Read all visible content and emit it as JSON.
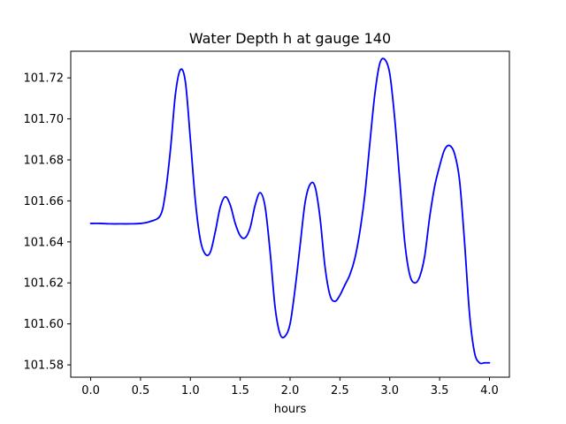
{
  "chart_data": {
    "type": "line",
    "title": "Water Depth h at gauge 140",
    "xlabel": "hours",
    "ylabel": "",
    "xlim": [
      -0.2,
      4.2
    ],
    "ylim": [
      101.574,
      101.733
    ],
    "xticks": [
      0.0,
      0.5,
      1.0,
      1.5,
      2.0,
      2.5,
      3.0,
      3.5,
      4.0
    ],
    "xtick_labels": [
      "0.0",
      "0.5",
      "1.0",
      "1.5",
      "2.0",
      "2.5",
      "3.0",
      "3.5",
      "4.0"
    ],
    "yticks": [
      101.58,
      101.6,
      101.62,
      101.64,
      101.66,
      101.68,
      101.7,
      101.72
    ],
    "ytick_labels": [
      "101.58",
      "101.60",
      "101.62",
      "101.64",
      "101.66",
      "101.68",
      "101.70",
      "101.72"
    ],
    "grid": false,
    "series": [
      {
        "color": "#0000ff",
        "x": [
          0.0,
          0.1,
          0.2,
          0.3,
          0.4,
          0.5,
          0.6,
          0.7,
          0.75,
          0.8,
          0.85,
          0.9,
          0.95,
          1.0,
          1.05,
          1.1,
          1.15,
          1.2,
          1.25,
          1.3,
          1.35,
          1.4,
          1.45,
          1.5,
          1.55,
          1.6,
          1.65,
          1.7,
          1.75,
          1.8,
          1.85,
          1.9,
          1.95,
          2.0,
          2.05,
          2.1,
          2.15,
          2.2,
          2.25,
          2.3,
          2.35,
          2.4,
          2.45,
          2.5,
          2.55,
          2.6,
          2.65,
          2.7,
          2.75,
          2.8,
          2.85,
          2.9,
          2.95,
          3.0,
          3.05,
          3.1,
          3.15,
          3.2,
          3.25,
          3.3,
          3.35,
          3.4,
          3.45,
          3.5,
          3.55,
          3.6,
          3.65,
          3.7,
          3.75,
          3.8,
          3.85,
          3.9,
          3.95,
          4.0
        ],
        "y": [
          101.649,
          101.649,
          101.6488,
          101.6488,
          101.6488,
          101.649,
          101.65,
          101.653,
          101.664,
          101.685,
          101.712,
          101.724,
          101.718,
          101.69,
          101.66,
          101.641,
          101.634,
          101.635,
          101.645,
          101.657,
          101.662,
          101.658,
          101.649,
          101.643,
          101.642,
          101.647,
          101.658,
          101.664,
          101.657,
          101.635,
          101.608,
          101.595,
          101.594,
          101.6,
          101.617,
          101.638,
          101.659,
          101.668,
          101.667,
          101.652,
          101.628,
          101.614,
          101.611,
          101.614,
          101.619,
          101.624,
          101.632,
          101.645,
          101.663,
          101.688,
          101.712,
          101.727,
          101.729,
          101.722,
          101.7,
          101.67,
          101.64,
          101.624,
          101.62,
          101.623,
          101.633,
          101.652,
          101.667,
          101.677,
          101.685,
          101.687,
          101.683,
          101.67,
          101.64,
          101.605,
          101.586,
          101.581,
          101.581,
          101.581
        ]
      }
    ]
  }
}
